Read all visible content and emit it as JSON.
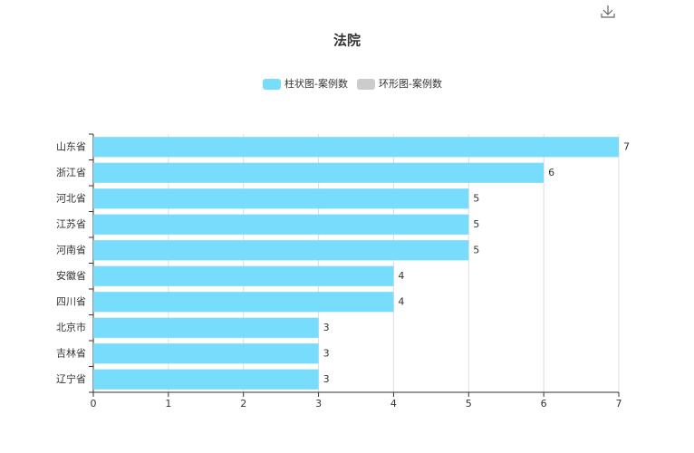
{
  "chart_data": {
    "type": "bar",
    "orientation": "horizontal",
    "title": "法院",
    "categories": [
      "山东省",
      "浙江省",
      "河北省",
      "江苏省",
      "河南省",
      "安徽省",
      "四川省",
      "北京市",
      "吉林省",
      "辽宁省"
    ],
    "series": [
      {
        "name": "柱状图-案例数",
        "color": "#78ddfd",
        "values": [
          7,
          6,
          5,
          5,
          5,
          4,
          4,
          3,
          3,
          3
        ],
        "selected": true
      },
      {
        "name": "环形图-案例数",
        "color": "#cccccc",
        "selected": false
      }
    ],
    "xlim": [
      0,
      7
    ],
    "xticks": [
      0,
      1,
      2,
      3,
      4,
      5,
      6,
      7
    ],
    "grid": true
  }
}
